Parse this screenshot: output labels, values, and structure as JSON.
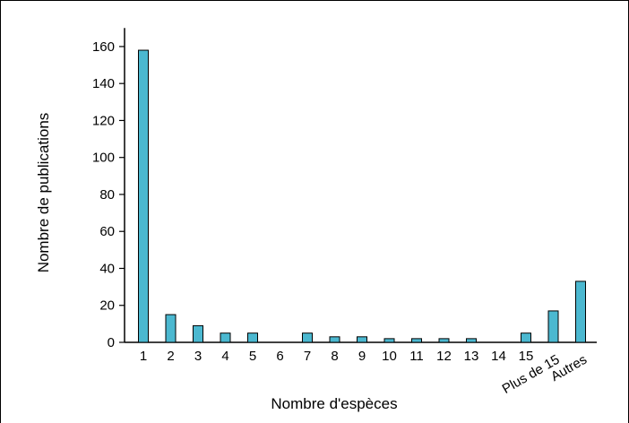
{
  "chart_data": {
    "type": "bar",
    "xlabel": "Nombre d'espèces",
    "ylabel": "Nombre de publications",
    "ylim": [
      0,
      170
    ],
    "yticks": [
      0,
      20,
      40,
      60,
      80,
      100,
      120,
      140,
      160
    ],
    "categories": [
      "1",
      "2",
      "3",
      "4",
      "5",
      "6",
      "7",
      "8",
      "9",
      "10",
      "11",
      "12",
      "13",
      "14",
      "15",
      "Plus de 15",
      "Autres"
    ],
    "values": [
      158,
      15,
      9,
      5,
      5,
      0,
      5,
      3,
      3,
      2,
      2,
      2,
      2,
      0,
      5,
      17,
      33
    ],
    "grid": false,
    "bar_color": "#4bb8d0",
    "bar_outline": "#000000"
  }
}
